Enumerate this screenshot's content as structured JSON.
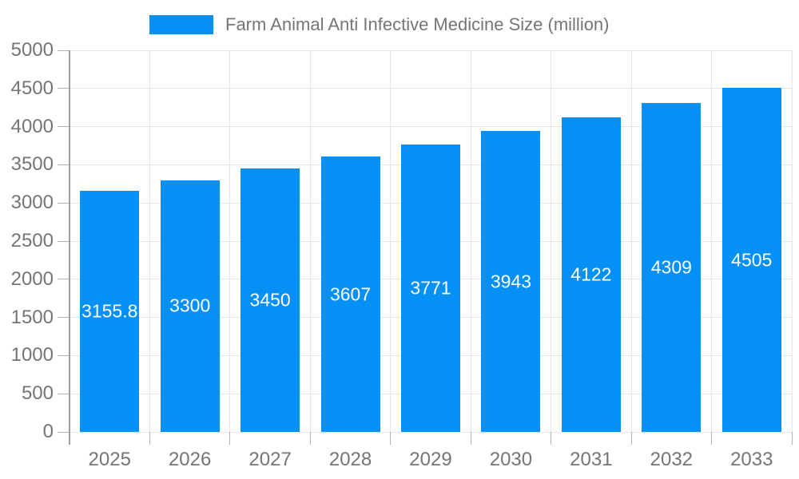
{
  "legend": {
    "label": "Farm Animal Anti Infective Medicine Size (million)"
  },
  "chart_data": {
    "type": "bar",
    "title": "Farm Animal Anti Infective Medicine Size (million)",
    "categories": [
      "2025",
      "2026",
      "2027",
      "2028",
      "2029",
      "2030",
      "2031",
      "2032",
      "2033"
    ],
    "values": [
      3155.8,
      3300,
      3450,
      3607,
      3771,
      3943,
      4122,
      4309,
      4505
    ],
    "value_labels": [
      "3155.8",
      "3300",
      "3450",
      "3607",
      "3771",
      "3943",
      "4122",
      "4309",
      "4505"
    ],
    "yticks": [
      0,
      500,
      1000,
      1500,
      2000,
      2500,
      3000,
      3500,
      4000,
      4500,
      5000
    ],
    "ylim": [
      0,
      5000
    ],
    "xlabel": "",
    "ylabel": "",
    "grid": true,
    "legend_position": "top",
    "colors": {
      "bar": "#0590f5",
      "axis_text": "#757575",
      "gridline": "#e6e6e6",
      "tick": "#b3b3b3",
      "axis_line": "#9e9e9e",
      "bar_label": "#ffffff",
      "background": "#ffffff"
    }
  }
}
